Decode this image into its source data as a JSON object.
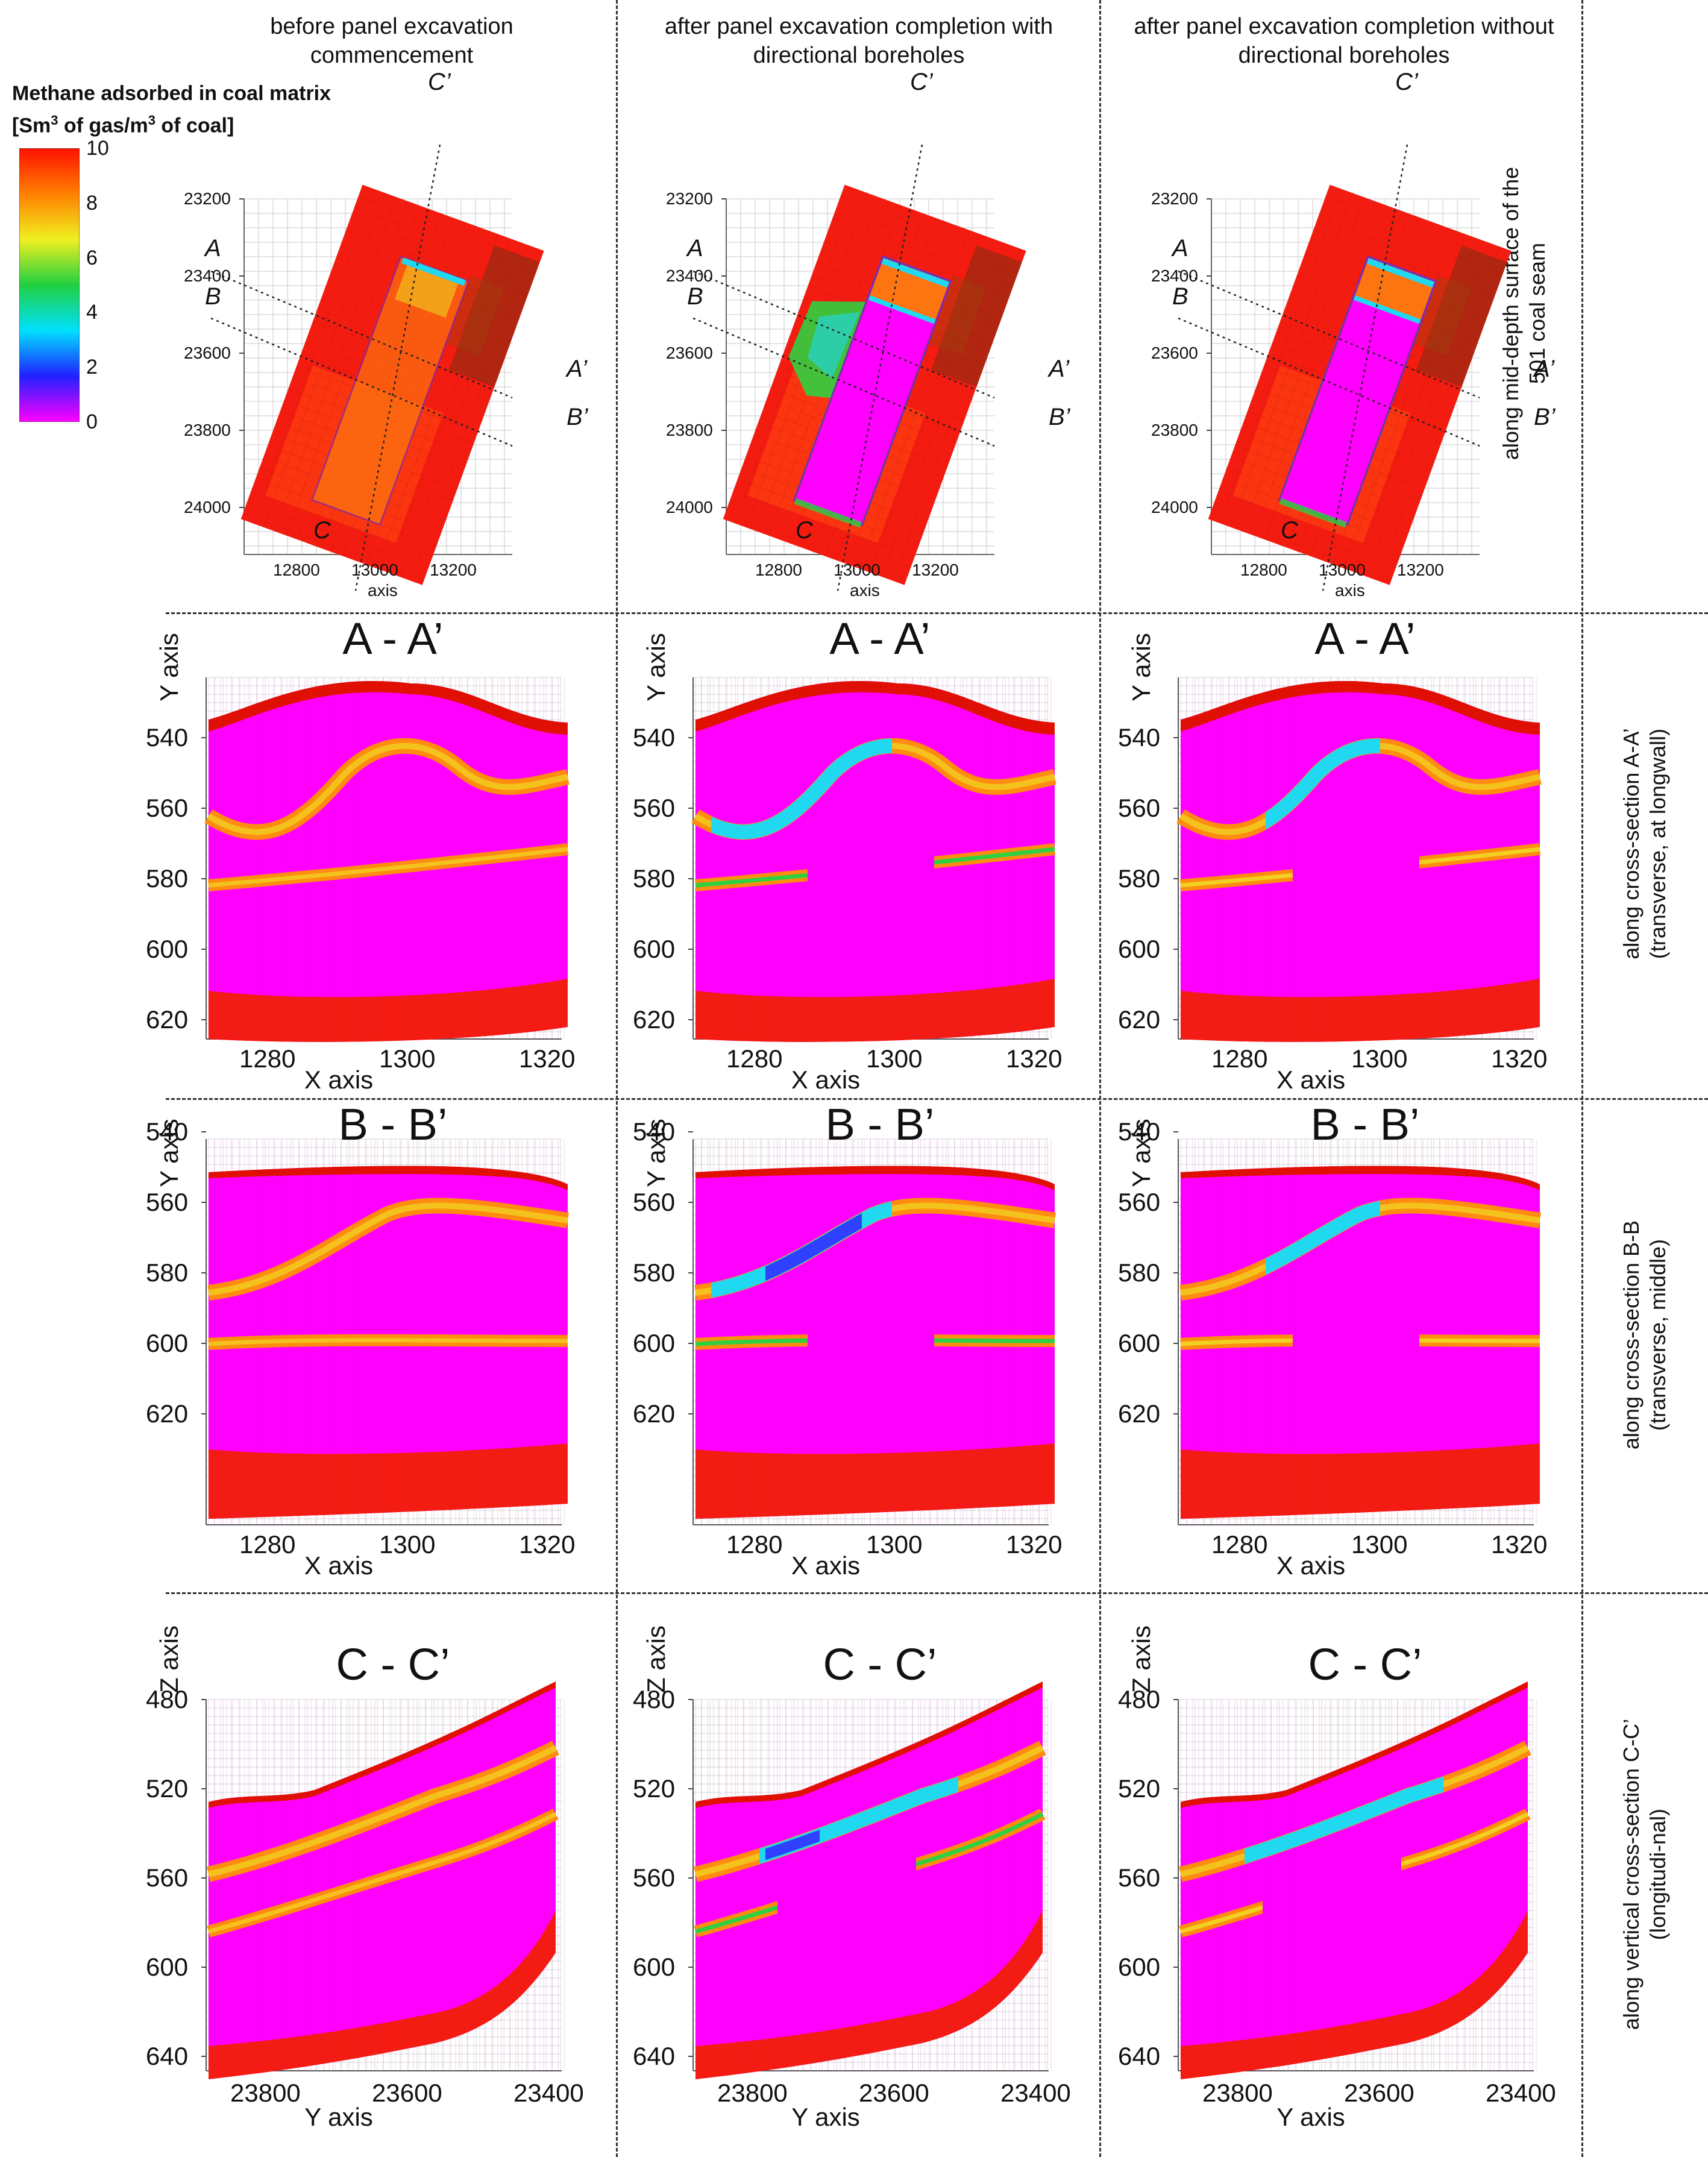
{
  "column_headers": [
    "before panel excavation commencement",
    "after panel excavation completion with directional boreholes",
    "after panel excavation completion without directional boreholes"
  ],
  "row_labels": [
    "along mid-depth surface of the 501 coal seam",
    "along cross-section A-A’ (transverse, at longwall)",
    "along cross-section B-B (transverse, middle)",
    "along vertical cross-section C-C’ (longitudi-nal)"
  ],
  "legend": {
    "title_line1": "Methane adsorbed in coal matrix",
    "title_line2_pre": "[Sm",
    "title_line2_sup": "3",
    "title_line2_mid": " of gas/m",
    "title_line2_sup2": "3",
    "title_line2_post": " of coal]",
    "ticks": [
      "10",
      "8",
      "6",
      "4",
      "2",
      "0"
    ],
    "min": 0,
    "max": 10,
    "colors": [
      "#ff00ff",
      "#2020ff",
      "#00e0ff",
      "#20d040",
      "#f0f020",
      "#ff8000",
      "#ff1000"
    ]
  },
  "map_panels": {
    "y_ticks": [
      "23200",
      "23400",
      "23600",
      "23800",
      "24000"
    ],
    "x_ticks": [
      "12800",
      "13000",
      "13200"
    ],
    "x_axis_label": "axis",
    "section_labels": [
      "A",
      "B",
      "A’",
      "B’",
      "C",
      "C’"
    ]
  },
  "section_AA": {
    "title": "A - A’",
    "y_axis_label": "Y axis",
    "y_ticks": [
      "540",
      "560",
      "580",
      "600",
      "620"
    ],
    "x_ticks": [
      "1280",
      "1300",
      "1320"
    ],
    "x_axis_label": "X axis"
  },
  "section_BB": {
    "title": "B - B’",
    "y_axis_label": "Y axis",
    "y_ticks": [
      "540",
      "560",
      "580",
      "600",
      "620"
    ],
    "x_ticks": [
      "1280",
      "1300",
      "1320"
    ],
    "x_axis_label": "X axis"
  },
  "section_CC": {
    "title": "C - C’",
    "y_axis_label": "Z axis",
    "y_ticks": [
      "480",
      "520",
      "560",
      "600",
      "640"
    ],
    "x_ticks": [
      "23800",
      "23600",
      "23400"
    ],
    "x_axis_label": "Y axis"
  },
  "scenarios": [
    "before",
    "with_boreholes",
    "without_boreholes"
  ]
}
